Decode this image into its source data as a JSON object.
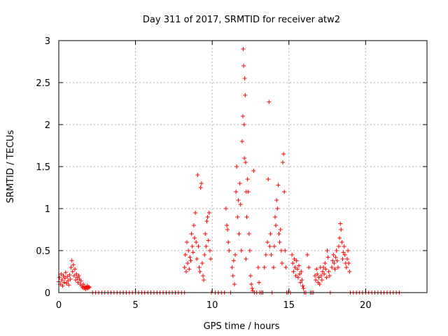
{
  "chart_data": {
    "type": "scatter",
    "title": "Day 311 of 2017, SRMTID for receiver atw2",
    "xlabel": "GPS time / hours",
    "ylabel": "SRMTID / TECUs",
    "xlim": [
      0,
      24
    ],
    "ylim": [
      0,
      3
    ],
    "xticks": [
      0,
      5,
      10,
      15,
      20
    ],
    "yticks": [
      0,
      0.5,
      1,
      1.5,
      2,
      2.5,
      3
    ],
    "ytick_labels": [
      "0",
      "0.5",
      "1",
      "1.5",
      "2",
      "2.5",
      "3"
    ],
    "grid": true,
    "marker": "+",
    "colors": {
      "points": "#ff0000",
      "grid": "#b0b0b0",
      "axis": "#000000"
    },
    "series": [
      {
        "name": "SRMTID",
        "points": [
          [
            0.0,
            0.13
          ],
          [
            0.05,
            0.18
          ],
          [
            0.1,
            0.1
          ],
          [
            0.15,
            0.22
          ],
          [
            0.2,
            0.15
          ],
          [
            0.25,
            0.08
          ],
          [
            0.3,
            0.2
          ],
          [
            0.35,
            0.12
          ],
          [
            0.4,
            0.17
          ],
          [
            0.45,
            0.24
          ],
          [
            0.5,
            0.11
          ],
          [
            0.55,
            0.19
          ],
          [
            0.6,
            0.14
          ],
          [
            0.65,
            0.09
          ],
          [
            0.7,
            0.21
          ],
          [
            0.75,
            0.16
          ],
          [
            0.8,
            0.3
          ],
          [
            0.85,
            0.38
          ],
          [
            0.9,
            0.25
          ],
          [
            0.95,
            0.33
          ],
          [
            1.0,
            0.2
          ],
          [
            1.05,
            0.28
          ],
          [
            1.1,
            0.15
          ],
          [
            1.15,
            0.22
          ],
          [
            1.2,
            0.18
          ],
          [
            1.25,
            0.12
          ],
          [
            1.3,
            0.2
          ],
          [
            1.35,
            0.16
          ],
          [
            1.4,
            0.1
          ],
          [
            1.45,
            0.14
          ],
          [
            1.5,
            0.08
          ],
          [
            1.55,
            0.06
          ],
          [
            1.6,
            0.1
          ],
          [
            1.65,
            0.05
          ],
          [
            1.7,
            0.07
          ],
          [
            1.75,
            0.04
          ],
          [
            1.8,
            0.06
          ],
          [
            1.85,
            0.08
          ],
          [
            1.9,
            0.05
          ],
          [
            1.95,
            0.07
          ],
          [
            2.0,
            0.06
          ],
          [
            2.2,
            0.0
          ],
          [
            2.4,
            0.0
          ],
          [
            2.6,
            0.0
          ],
          [
            2.8,
            0.0
          ],
          [
            3.0,
            0.0
          ],
          [
            3.2,
            0.0
          ],
          [
            3.4,
            0.0
          ],
          [
            3.6,
            0.0
          ],
          [
            3.8,
            0.0
          ],
          [
            4.0,
            0.0
          ],
          [
            4.2,
            0.0
          ],
          [
            4.4,
            0.0
          ],
          [
            4.6,
            0.0
          ],
          [
            4.8,
            0.0
          ],
          [
            5.0,
            0.0
          ],
          [
            5.2,
            0.0
          ],
          [
            5.4,
            0.0
          ],
          [
            5.6,
            0.0
          ],
          [
            5.8,
            0.0
          ],
          [
            6.0,
            0.0
          ],
          [
            6.2,
            0.0
          ],
          [
            6.4,
            0.0
          ],
          [
            6.6,
            0.0
          ],
          [
            6.8,
            0.0
          ],
          [
            7.0,
            0.0
          ],
          [
            7.2,
            0.0
          ],
          [
            7.4,
            0.0
          ],
          [
            7.6,
            0.0
          ],
          [
            7.8,
            0.0
          ],
          [
            8.0,
            0.0
          ],
          [
            8.2,
            0.0
          ],
          [
            8.2,
            0.3
          ],
          [
            8.25,
            0.45
          ],
          [
            8.3,
            0.25
          ],
          [
            8.35,
            0.6
          ],
          [
            8.4,
            0.35
          ],
          [
            8.45,
            0.5
          ],
          [
            8.5,
            0.28
          ],
          [
            8.55,
            0.42
          ],
          [
            8.6,
            0.38
          ],
          [
            8.65,
            0.7
          ],
          [
            8.7,
            0.55
          ],
          [
            8.75,
            0.48
          ],
          [
            8.8,
            0.8
          ],
          [
            8.85,
            0.65
          ],
          [
            8.9,
            0.95
          ],
          [
            8.95,
            0.6
          ],
          [
            9.0,
            0.4
          ],
          [
            9.05,
            1.4
          ],
          [
            9.1,
            0.55
          ],
          [
            9.15,
            0.3
          ],
          [
            9.2,
            0.25
          ],
          [
            9.25,
            1.25
          ],
          [
            9.3,
            1.3
          ],
          [
            9.35,
            0.35
          ],
          [
            9.4,
            0.2
          ],
          [
            9.45,
            0.15
          ],
          [
            9.5,
            0.45
          ],
          [
            9.55,
            0.7
          ],
          [
            9.6,
            0.55
          ],
          [
            9.65,
            0.85
          ],
          [
            9.7,
            0.9
          ],
          [
            9.75,
            0.62
          ],
          [
            9.8,
            0.95
          ],
          [
            9.85,
            0.5
          ],
          [
            9.9,
            0.4
          ],
          [
            9.95,
            0.0
          ],
          [
            10.2,
            0.0
          ],
          [
            10.4,
            0.0
          ],
          [
            10.6,
            0.0
          ],
          [
            10.8,
            0.0
          ],
          [
            10.9,
            1.0
          ],
          [
            10.95,
            0.8
          ],
          [
            11.0,
            0.75
          ],
          [
            11.05,
            0.6
          ],
          [
            11.1,
            0.5
          ],
          [
            11.2,
            0.0
          ],
          [
            11.3,
            0.3
          ],
          [
            11.35,
            0.2
          ],
          [
            11.4,
            0.38
          ],
          [
            11.45,
            0.1
          ],
          [
            11.5,
            0.45
          ],
          [
            11.55,
            1.2
          ],
          [
            11.6,
            1.5
          ],
          [
            11.65,
            0.9
          ],
          [
            11.7,
            1.1
          ],
          [
            11.75,
            0.7
          ],
          [
            11.8,
            1.3
          ],
          [
            11.85,
            1.05
          ],
          [
            11.9,
            0.5
          ],
          [
            11.95,
            1.8
          ],
          [
            12.0,
            2.1
          ],
          [
            12.02,
            2.9
          ],
          [
            12.05,
            2.7
          ],
          [
            12.08,
            2.0
          ],
          [
            12.1,
            1.6
          ],
          [
            12.12,
            2.55
          ],
          [
            12.15,
            2.35
          ],
          [
            12.18,
            1.55
          ],
          [
            12.2,
            0.4
          ],
          [
            12.22,
            1.2
          ],
          [
            12.25,
            0.9
          ],
          [
            12.3,
            1.35
          ],
          [
            12.35,
            1.2
          ],
          [
            12.4,
            0.7
          ],
          [
            12.45,
            0.5
          ],
          [
            12.5,
            0.2
          ],
          [
            12.55,
            0.1
          ],
          [
            12.6,
            0.05
          ],
          [
            12.65,
            0.02
          ],
          [
            12.7,
            1.45
          ],
          [
            12.75,
            0.0
          ],
          [
            12.9,
            0.0
          ],
          [
            13.0,
            0.3
          ],
          [
            13.05,
            0.12
          ],
          [
            13.1,
            0.0
          ],
          [
            13.2,
            0.0
          ],
          [
            13.3,
            0.0
          ],
          [
            13.4,
            0.3
          ],
          [
            13.5,
            0.45
          ],
          [
            13.6,
            0.6
          ],
          [
            13.65,
            1.35
          ],
          [
            13.7,
            2.27
          ],
          [
            13.75,
            0.55
          ],
          [
            13.8,
            0.7
          ],
          [
            13.85,
            0.45
          ],
          [
            13.9,
            0.0
          ],
          [
            14.0,
            0.3
          ],
          [
            14.05,
            0.55
          ],
          [
            14.1,
            0.9
          ],
          [
            14.15,
            0.8
          ],
          [
            14.2,
            1.1
          ],
          [
            14.25,
            1.0
          ],
          [
            14.3,
            1.28
          ],
          [
            14.35,
            0.7
          ],
          [
            14.4,
            0.6
          ],
          [
            14.45,
            0.75
          ],
          [
            14.5,
            0.5
          ],
          [
            14.55,
            0.35
          ],
          [
            14.6,
            1.55
          ],
          [
            14.65,
            1.65
          ],
          [
            14.7,
            1.2
          ],
          [
            14.75,
            0.5
          ],
          [
            14.8,
            0.3
          ],
          [
            14.85,
            0.0
          ],
          [
            14.95,
            0.0
          ],
          [
            15.1,
            0.0
          ],
          [
            15.2,
            0.45
          ],
          [
            15.25,
            0.35
          ],
          [
            15.3,
            0.25
          ],
          [
            15.35,
            0.4
          ],
          [
            15.4,
            0.3
          ],
          [
            15.45,
            0.2
          ],
          [
            15.5,
            0.38
          ],
          [
            15.55,
            0.28
          ],
          [
            15.6,
            0.18
          ],
          [
            15.65,
            0.32
          ],
          [
            15.7,
            0.22
          ],
          [
            15.75,
            0.12
          ],
          [
            15.8,
            0.25
          ],
          [
            15.85,
            0.15
          ],
          [
            15.9,
            0.08
          ],
          [
            15.95,
            0.05
          ],
          [
            16.0,
            0.0
          ],
          [
            16.1,
            0.0
          ],
          [
            16.2,
            0.45
          ],
          [
            16.3,
            0.3
          ],
          [
            16.4,
            0.0
          ],
          [
            16.5,
            0.0
          ],
          [
            16.6,
            0.0
          ],
          [
            16.7,
            0.2
          ],
          [
            16.75,
            0.15
          ],
          [
            16.8,
            0.28
          ],
          [
            16.85,
            0.22
          ],
          [
            16.9,
            0.12
          ],
          [
            16.95,
            0.18
          ],
          [
            17.0,
            0.1
          ],
          [
            17.05,
            0.3
          ],
          [
            17.1,
            0.2
          ],
          [
            17.15,
            0.15
          ],
          [
            17.2,
            0.25
          ],
          [
            17.25,
            0.3
          ],
          [
            17.3,
            0.22
          ],
          [
            17.35,
            0.35
          ],
          [
            17.4,
            0.28
          ],
          [
            17.45,
            0.18
          ],
          [
            17.5,
            0.5
          ],
          [
            17.55,
            0.42
          ],
          [
            17.6,
            0.25
          ],
          [
            17.65,
            0.2
          ],
          [
            17.7,
            0.0
          ],
          [
            17.8,
            0.3
          ],
          [
            17.85,
            0.38
          ],
          [
            17.9,
            0.45
          ],
          [
            17.95,
            0.35
          ],
          [
            18.0,
            0.28
          ],
          [
            18.05,
            0.42
          ],
          [
            18.1,
            0.5
          ],
          [
            18.15,
            0.38
          ],
          [
            18.2,
            0.3
          ],
          [
            18.25,
            0.55
          ],
          [
            18.3,
            0.65
          ],
          [
            18.35,
            0.82
          ],
          [
            18.4,
            0.75
          ],
          [
            18.45,
            0.6
          ],
          [
            18.5,
            0.4
          ],
          [
            18.55,
            0.48
          ],
          [
            18.6,
            0.55
          ],
          [
            18.65,
            0.45
          ],
          [
            18.7,
            0.35
          ],
          [
            18.75,
            0.3
          ],
          [
            18.8,
            0.4
          ],
          [
            18.85,
            0.5
          ],
          [
            18.9,
            0.35
          ],
          [
            18.95,
            0.25
          ],
          [
            19.0,
            0.0
          ],
          [
            19.2,
            0.0
          ],
          [
            19.4,
            0.0
          ],
          [
            19.6,
            0.0
          ],
          [
            19.8,
            0.0
          ],
          [
            20.0,
            0.0
          ],
          [
            20.2,
            0.0
          ],
          [
            20.4,
            0.0
          ],
          [
            20.6,
            0.0
          ],
          [
            20.8,
            0.0
          ],
          [
            21.0,
            0.0
          ],
          [
            21.2,
            0.0
          ],
          [
            21.4,
            0.0
          ],
          [
            21.6,
            0.0
          ],
          [
            21.8,
            0.0
          ],
          [
            22.0,
            0.0
          ],
          [
            22.2,
            0.0
          ]
        ]
      }
    ]
  }
}
